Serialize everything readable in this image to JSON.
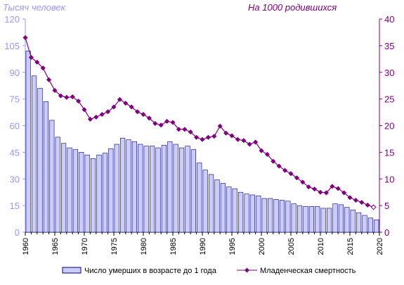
{
  "chart_data": {
    "type": "bar+line",
    "left_axis_title": "Тысяч человек",
    "right_axis_title": "На 1000 родившихся",
    "left_ylim": [
      0,
      120
    ],
    "left_ticks": [
      "0",
      "15",
      "30",
      "45",
      "60",
      "75",
      "90",
      "105",
      "120"
    ],
    "right_ylim": [
      0,
      40
    ],
    "right_ticks": [
      "0",
      "5",
      "10",
      "15",
      "20",
      "25",
      "30",
      "35",
      "40"
    ],
    "xlim": [
      1960,
      2020
    ],
    "x_ticks": [
      "1960",
      "1965",
      "1970",
      "1975",
      "1980",
      "1985",
      "1990",
      "1995",
      "2000",
      "2005",
      "2010",
      "2015",
      "2020"
    ],
    "years": [
      1960,
      1961,
      1962,
      1963,
      1964,
      1965,
      1966,
      1967,
      1968,
      1969,
      1970,
      1971,
      1972,
      1973,
      1974,
      1975,
      1976,
      1977,
      1978,
      1979,
      1980,
      1981,
      1982,
      1983,
      1984,
      1985,
      1986,
      1987,
      1988,
      1989,
      1990,
      1991,
      1992,
      1993,
      1994,
      1995,
      1996,
      1997,
      1998,
      1999,
      2000,
      2001,
      2002,
      2003,
      2004,
      2005,
      2006,
      2007,
      2008,
      2009,
      2010,
      2011,
      2012,
      2013,
      2014,
      2015,
      2016,
      2017,
      2018,
      2019
    ],
    "series": [
      {
        "name": "Число умерших в возрасте до 1 года",
        "kind": "bar",
        "axis": "left",
        "color": "#ccccff",
        "border": "#000080",
        "values": [
          102,
          88,
          81,
          73.5,
          63,
          53.5,
          50,
          47.5,
          46.5,
          45,
          43.5,
          41.5,
          43.5,
          44.5,
          47,
          49.5,
          53,
          52,
          51,
          49.5,
          48.5,
          48.5,
          47.5,
          49,
          51,
          49.5,
          47.5,
          48.5,
          46.5,
          39,
          35,
          32.5,
          29.5,
          27.5,
          25.5,
          24.5,
          22.5,
          21.5,
          21,
          20.5,
          19,
          19,
          18.5,
          18,
          17.5,
          16,
          15,
          14.5,
          14.5,
          14.5,
          13.5,
          13.5,
          16,
          15.5,
          14,
          12.5,
          11,
          9.5,
          8,
          7
        ]
      },
      {
        "name": "Младенческая смертность",
        "kind": "line",
        "axis": "right",
        "color": "#800080",
        "values": [
          36.5,
          32.8,
          31.9,
          30.8,
          28.6,
          26.6,
          25.6,
          25.3,
          25.4,
          24.6,
          23.0,
          21.2,
          21.6,
          22.1,
          22.6,
          23.5,
          24.9,
          24.2,
          23.5,
          22.6,
          22.1,
          21.4,
          20.4,
          20.1,
          20.8,
          20.6,
          19.3,
          19.3,
          18.8,
          17.8,
          17.4,
          17.8,
          18.0,
          19.9,
          18.6,
          18.1,
          17.4,
          17.2,
          16.5,
          16.9,
          15.3,
          14.6,
          13.3,
          12.4,
          11.6,
          11.0,
          10.2,
          9.4,
          8.5,
          8.1,
          7.5,
          7.4,
          8.6,
          8.2,
          7.4,
          6.5,
          6.0,
          5.6,
          5.1,
          4.7
        ]
      }
    ],
    "legend_position": "bottom",
    "grid": false
  }
}
